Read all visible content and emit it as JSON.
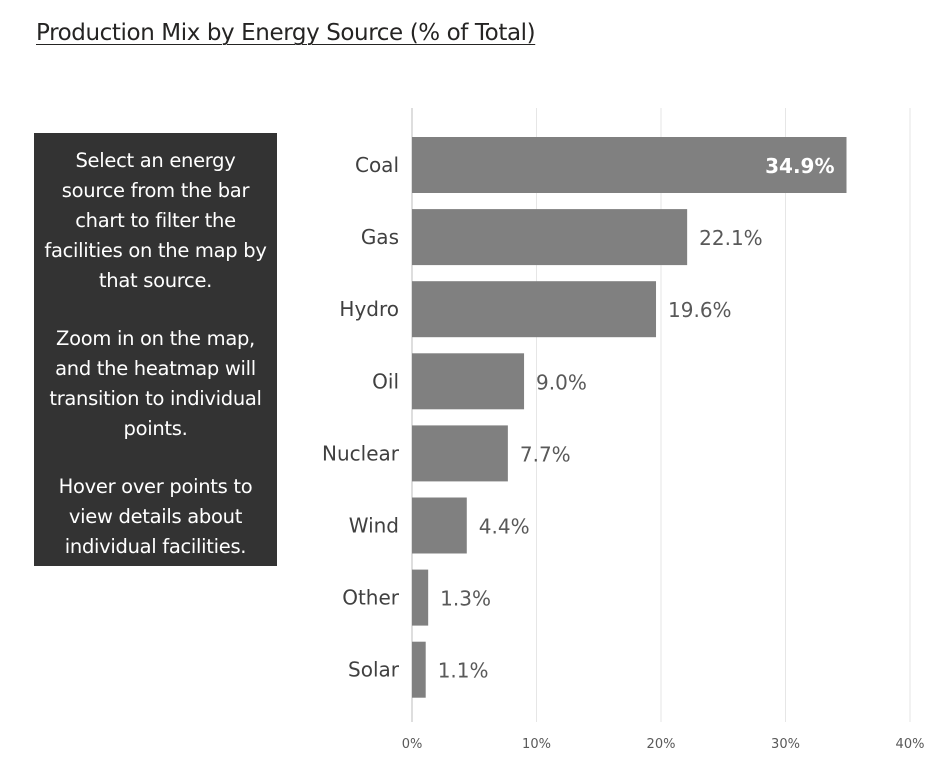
{
  "title": "Production Mix by Energy Source (% of Total)",
  "info": {
    "paragraphs": [
      "Select an energy source from the bar chart to filter the facilities on the map by that source.",
      "Zoom in on the map, and the heatmap will transition to individual points.",
      "Hover over points to view details about individual facilities."
    ]
  },
  "colors": {
    "bar": "#808080",
    "info_bg": "#333333"
  },
  "chart_data": {
    "type": "bar",
    "orientation": "horizontal",
    "title": "Production Mix by Energy Source (% of Total)",
    "categories": [
      "Coal",
      "Gas",
      "Hydro",
      "Oil",
      "Nuclear",
      "Wind",
      "Other",
      "Solar"
    ],
    "values": [
      34.9,
      22.1,
      19.6,
      9.0,
      7.7,
      4.4,
      1.3,
      1.1
    ],
    "data_labels": [
      "34.9%",
      "22.1%",
      "19.6%",
      "9.0%",
      "7.7%",
      "4.4%",
      "1.3%",
      "1.1%"
    ],
    "xlim": [
      0,
      40
    ],
    "xticks": [
      0,
      10,
      20,
      30,
      40
    ],
    "xtick_labels": [
      "0%",
      "10%",
      "20%",
      "30%",
      "40%"
    ],
    "grid": true,
    "legend": "none"
  }
}
